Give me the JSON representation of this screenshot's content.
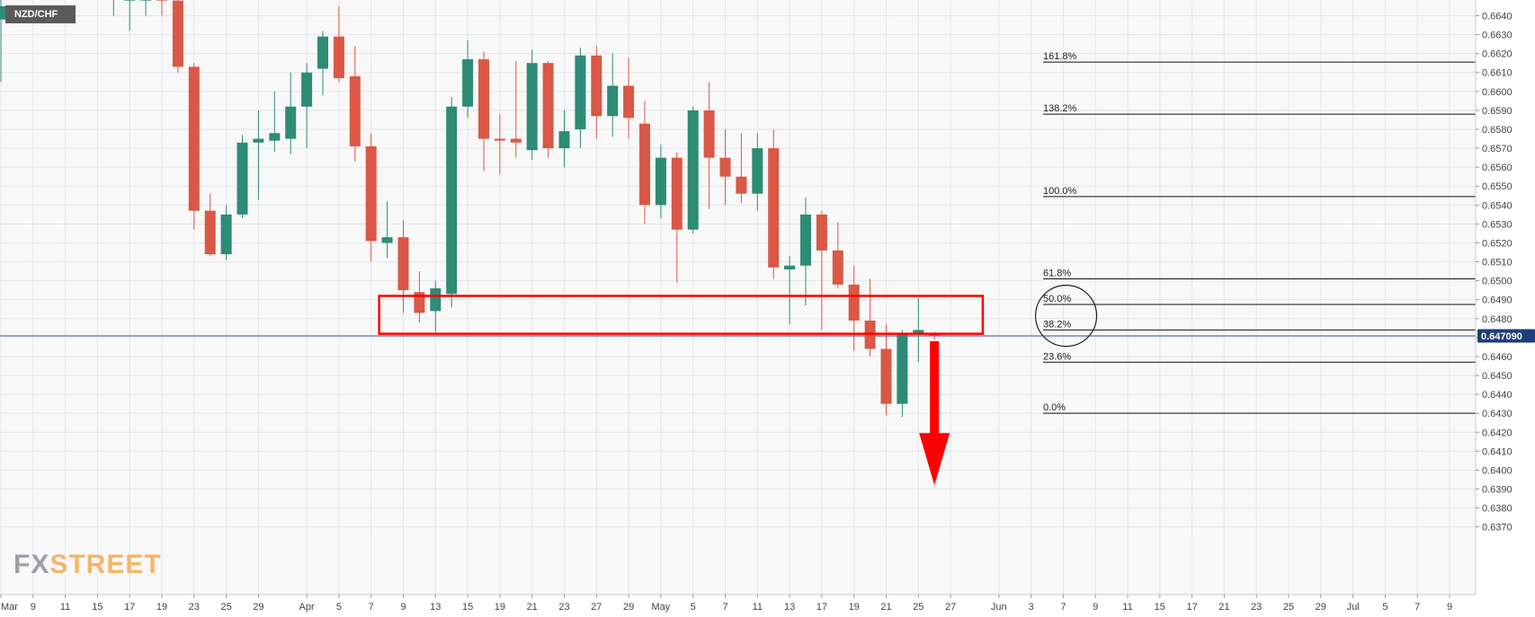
{
  "symbol": "NZD/CHF",
  "logo": {
    "fx": "FX",
    "street": "STREET"
  },
  "current_price_label": "0.647090",
  "colors": {
    "bull": "#2e8b76",
    "bear": "#d95846",
    "annotation": "#ff0000",
    "grid": "#e3e6ec",
    "price_tag_bg": "#1f3d7a"
  },
  "chart_data": {
    "type": "candlestick",
    "title": "",
    "xlabel": "",
    "ylabel": "",
    "ylim": [
      0.6365,
      0.6648
    ],
    "y_ticks": [
      "0.6640",
      "0.6630",
      "0.6620",
      "0.6610",
      "0.6600",
      "0.6590",
      "0.6580",
      "0.6570",
      "0.6560",
      "0.6550",
      "0.6540",
      "0.6530",
      "0.6520",
      "0.6510",
      "0.6500",
      "0.6490",
      "0.6480",
      "0.6470",
      "0.6460",
      "0.6450",
      "0.6440",
      "0.6430",
      "0.6420",
      "0.6410",
      "0.6400",
      "0.6390",
      "0.6380",
      "0.6370"
    ],
    "x_ticks": [
      {
        "label": "Mar",
        "slot": 0
      },
      {
        "label": "9",
        "slot": 2
      },
      {
        "label": "11",
        "slot": 4
      },
      {
        "label": "15",
        "slot": 6
      },
      {
        "label": "17",
        "slot": 8
      },
      {
        "label": "19",
        "slot": 10
      },
      {
        "label": "23",
        "slot": 12
      },
      {
        "label": "25",
        "slot": 14
      },
      {
        "label": "29",
        "slot": 16
      },
      {
        "label": "Apr",
        "slot": 19
      },
      {
        "label": "5",
        "slot": 21
      },
      {
        "label": "7",
        "slot": 23
      },
      {
        "label": "9",
        "slot": 25
      },
      {
        "label": "13",
        "slot": 27
      },
      {
        "label": "15",
        "slot": 29
      },
      {
        "label": "19",
        "slot": 31
      },
      {
        "label": "21",
        "slot": 33
      },
      {
        "label": "23",
        "slot": 35
      },
      {
        "label": "27",
        "slot": 37
      },
      {
        "label": "29",
        "slot": 39
      },
      {
        "label": "May",
        "slot": 41
      },
      {
        "label": "5",
        "slot": 43
      },
      {
        "label": "7",
        "slot": 45
      },
      {
        "label": "11",
        "slot": 47
      },
      {
        "label": "13",
        "slot": 49
      },
      {
        "label": "17",
        "slot": 51
      },
      {
        "label": "19",
        "slot": 53
      },
      {
        "label": "21",
        "slot": 55
      },
      {
        "label": "25",
        "slot": 57
      },
      {
        "label": "27",
        "slot": 59
      },
      {
        "label": "Jun",
        "slot": 62
      },
      {
        "label": "3",
        "slot": 64
      },
      {
        "label": "7",
        "slot": 66
      },
      {
        "label": "9",
        "slot": 68
      },
      {
        "label": "11",
        "slot": 70
      },
      {
        "label": "15",
        "slot": 72
      },
      {
        "label": "17",
        "slot": 74
      },
      {
        "label": "21",
        "slot": 76
      },
      {
        "label": "23",
        "slot": 78
      },
      {
        "label": "25",
        "slot": 80
      },
      {
        "label": "29",
        "slot": 82
      },
      {
        "label": "Jul",
        "slot": 84
      },
      {
        "label": "5",
        "slot": 86
      },
      {
        "label": "7",
        "slot": 88
      },
      {
        "label": "9",
        "slot": 90
      }
    ],
    "candles": [
      {
        "slot": 0,
        "o": 0.6638,
        "h": 0.666,
        "l": 0.6605,
        "c": 0.6645
      },
      {
        "slot": 7,
        "o": 0.665,
        "h": 0.6662,
        "l": 0.664,
        "c": 0.6655
      },
      {
        "slot": 8,
        "o": 0.6648,
        "h": 0.6665,
        "l": 0.6632,
        "c": 0.6655
      },
      {
        "slot": 9,
        "o": 0.6648,
        "h": 0.666,
        "l": 0.664,
        "c": 0.665
      },
      {
        "slot": 10,
        "o": 0.665,
        "h": 0.6665,
        "l": 0.664,
        "c": 0.6648
      },
      {
        "slot": 11,
        "o": 0.6648,
        "h": 0.666,
        "l": 0.661,
        "c": 0.6613
      },
      {
        "slot": 12,
        "o": 0.6613,
        "h": 0.6615,
        "l": 0.6527,
        "c": 0.6537
      },
      {
        "slot": 13,
        "o": 0.6537,
        "h": 0.6546,
        "l": 0.6513,
        "c": 0.6514
      },
      {
        "slot": 14,
        "o": 0.6514,
        "h": 0.654,
        "l": 0.6511,
        "c": 0.6535
      },
      {
        "slot": 15,
        "o": 0.6535,
        "h": 0.6577,
        "l": 0.6533,
        "c": 0.6573
      },
      {
        "slot": 16,
        "o": 0.6573,
        "h": 0.659,
        "l": 0.6543,
        "c": 0.6575
      },
      {
        "slot": 17,
        "o": 0.6574,
        "h": 0.66,
        "l": 0.6568,
        "c": 0.6578
      },
      {
        "slot": 18,
        "o": 0.6575,
        "h": 0.661,
        "l": 0.6567,
        "c": 0.6592
      },
      {
        "slot": 19,
        "o": 0.6592,
        "h": 0.6615,
        "l": 0.657,
        "c": 0.661
      },
      {
        "slot": 20,
        "o": 0.6612,
        "h": 0.6632,
        "l": 0.6598,
        "c": 0.6629
      },
      {
        "slot": 21,
        "o": 0.6629,
        "h": 0.6645,
        "l": 0.6605,
        "c": 0.6607
      },
      {
        "slot": 22,
        "o": 0.6608,
        "h": 0.6624,
        "l": 0.6563,
        "c": 0.6571
      },
      {
        "slot": 23,
        "o": 0.6571,
        "h": 0.6578,
        "l": 0.651,
        "c": 0.6521
      },
      {
        "slot": 24,
        "o": 0.652,
        "h": 0.6542,
        "l": 0.6512,
        "c": 0.6523
      },
      {
        "slot": 25,
        "o": 0.6523,
        "h": 0.6532,
        "l": 0.6483,
        "c": 0.6495
      },
      {
        "slot": 26,
        "o": 0.6494,
        "h": 0.6505,
        "l": 0.6478,
        "c": 0.6483
      },
      {
        "slot": 27,
        "o": 0.6484,
        "h": 0.65,
        "l": 0.6473,
        "c": 0.6496
      },
      {
        "slot": 28,
        "o": 0.6493,
        "h": 0.6597,
        "l": 0.6486,
        "c": 0.6592
      },
      {
        "slot": 29,
        "o": 0.6592,
        "h": 0.6627,
        "l": 0.6586,
        "c": 0.6617
      },
      {
        "slot": 30,
        "o": 0.6617,
        "h": 0.6621,
        "l": 0.6558,
        "c": 0.6575
      },
      {
        "slot": 31,
        "o": 0.6575,
        "h": 0.6588,
        "l": 0.6556,
        "c": 0.6574
      },
      {
        "slot": 32,
        "o": 0.6575,
        "h": 0.6616,
        "l": 0.6565,
        "c": 0.6573
      },
      {
        "slot": 33,
        "o": 0.6569,
        "h": 0.6622,
        "l": 0.6564,
        "c": 0.6615
      },
      {
        "slot": 34,
        "o": 0.6615,
        "h": 0.6616,
        "l": 0.6565,
        "c": 0.657
      },
      {
        "slot": 35,
        "o": 0.657,
        "h": 0.659,
        "l": 0.656,
        "c": 0.6579
      },
      {
        "slot": 36,
        "o": 0.658,
        "h": 0.6623,
        "l": 0.657,
        "c": 0.6619
      },
      {
        "slot": 37,
        "o": 0.6619,
        "h": 0.6624,
        "l": 0.6575,
        "c": 0.6587
      },
      {
        "slot": 38,
        "o": 0.6587,
        "h": 0.662,
        "l": 0.6576,
        "c": 0.6603
      },
      {
        "slot": 39,
        "o": 0.6603,
        "h": 0.6618,
        "l": 0.6575,
        "c": 0.6586
      },
      {
        "slot": 40,
        "o": 0.6583,
        "h": 0.6595,
        "l": 0.653,
        "c": 0.654
      },
      {
        "slot": 41,
        "o": 0.654,
        "h": 0.6572,
        "l": 0.6533,
        "c": 0.6565
      },
      {
        "slot": 42,
        "o": 0.6565,
        "h": 0.6568,
        "l": 0.6499,
        "c": 0.6527
      },
      {
        "slot": 43,
        "o": 0.6527,
        "h": 0.6592,
        "l": 0.6525,
        "c": 0.659
      },
      {
        "slot": 44,
        "o": 0.659,
        "h": 0.6605,
        "l": 0.6538,
        "c": 0.6565
      },
      {
        "slot": 45,
        "o": 0.6565,
        "h": 0.658,
        "l": 0.654,
        "c": 0.6555
      },
      {
        "slot": 46,
        "o": 0.6555,
        "h": 0.6578,
        "l": 0.6541,
        "c": 0.6546
      },
      {
        "slot": 47,
        "o": 0.6546,
        "h": 0.6578,
        "l": 0.6537,
        "c": 0.657
      },
      {
        "slot": 48,
        "o": 0.657,
        "h": 0.658,
        "l": 0.6501,
        "c": 0.6507
      },
      {
        "slot": 49,
        "o": 0.6506,
        "h": 0.6513,
        "l": 0.6477,
        "c": 0.6508
      },
      {
        "slot": 50,
        "o": 0.6508,
        "h": 0.6544,
        "l": 0.6487,
        "c": 0.6535
      },
      {
        "slot": 51,
        "o": 0.6535,
        "h": 0.6537,
        "l": 0.6474,
        "c": 0.6516
      },
      {
        "slot": 52,
        "o": 0.6516,
        "h": 0.6531,
        "l": 0.6496,
        "c": 0.6498
      },
      {
        "slot": 53,
        "o": 0.6498,
        "h": 0.6508,
        "l": 0.6463,
        "c": 0.6479
      },
      {
        "slot": 54,
        "o": 0.6479,
        "h": 0.6501,
        "l": 0.646,
        "c": 0.6464
      },
      {
        "slot": 55,
        "o": 0.6464,
        "h": 0.6477,
        "l": 0.6429,
        "c": 0.6435
      },
      {
        "slot": 56,
        "o": 0.6435,
        "h": 0.6474,
        "l": 0.6428,
        "c": 0.6472
      },
      {
        "slot": 57,
        "o": 0.6472,
        "h": 0.6491,
        "l": 0.6457,
        "c": 0.6474
      },
      {
        "slot": 58,
        "o": 0.6472,
        "h": 0.6473,
        "l": 0.6469,
        "c": 0.6471
      }
    ],
    "fibonacci": [
      {
        "label": "161.8%",
        "price": 0.66155
      },
      {
        "label": "138.2%",
        "price": 0.6588
      },
      {
        "label": "100.0%",
        "price": 0.65445
      },
      {
        "label": "61.8%",
        "price": 0.6501
      },
      {
        "label": "50.0%",
        "price": 0.64875
      },
      {
        "label": "38.2%",
        "price": 0.6474
      },
      {
        "label": "23.6%",
        "price": 0.6457
      },
      {
        "label": "0.0%",
        "price": 0.643
      }
    ],
    "current_price": 0.64709,
    "support_zone": {
      "slot_from": 23.5,
      "slot_to": 61,
      "price_top": 0.6492,
      "price_bottom": 0.6472
    },
    "arrow": {
      "slot": 58.5,
      "price_from": 0.647,
      "price_to": 0.6392
    },
    "circle": {
      "slot": 64.5,
      "price": 0.64815
    }
  }
}
